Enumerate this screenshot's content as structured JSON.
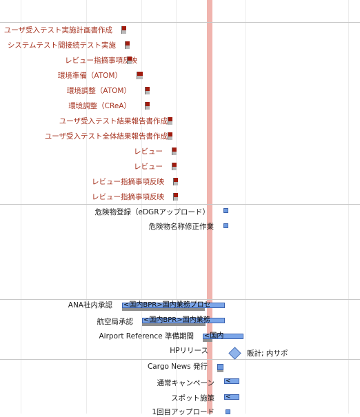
{
  "tasks_red": [
    "ユーザ受入テスト実施計画書作成",
    "システムテスト間接続テスト実施",
    "レビュー指摘事項反映",
    "環境準備（ATOM）",
    "環境調整（ATOM）",
    "環境調整（CReA）",
    "ユーザ受入テスト結果報告書作成",
    "ユーザ受入テスト全体結果報告書作成",
    "レビュー",
    "レビュー",
    "レビュー指摘事項反映",
    "レビュー指摘事項反映"
  ],
  "group2": {
    "item1": "危険物登録（eDGRアップロード）",
    "item2": "危険物名称修正作業"
  },
  "group3": {
    "ana_label": "ANA社内承認",
    "ana_bar": "<国内BPR>国内業務プロセ",
    "jcab_label": "航空局承認",
    "jcab_bar": "<国内BPR>国内業務",
    "airport_label": "Airport Reference 準備期間",
    "airport_bar": "<国内",
    "hp_label": "HPリリース",
    "hp_note": "販計; 内サポ"
  },
  "group4": {
    "cargo": "Cargo News 発行",
    "campaign": "通常キャンペーン",
    "spot": "スポット施策",
    "spot_bar": "<",
    "campaign_bar": "<",
    "upload1": "1回目アップロード"
  }
}
